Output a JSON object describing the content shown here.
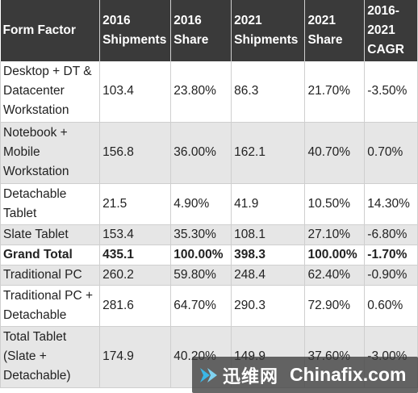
{
  "table": {
    "headers": [
      "Form Factor",
      "2016 Shipments",
      "2016 Share",
      "2021 Shipments",
      "2021 Share",
      "2016-2021 CAGR"
    ],
    "rows": [
      {
        "cells": [
          "Desktop + DT & Datacenter Workstation",
          "103.4",
          "23.80%",
          "86.3",
          "21.70%",
          "-3.50%"
        ],
        "shade": false,
        "bold": false
      },
      {
        "cells": [
          "Notebook + Mobile Workstation",
          "156.8",
          "36.00%",
          "162.1",
          "40.70%",
          "0.70%"
        ],
        "shade": true,
        "bold": false
      },
      {
        "cells": [
          "Detachable Tablet",
          "21.5",
          "4.90%",
          "41.9",
          "10.50%",
          "14.30%"
        ],
        "shade": false,
        "bold": false
      },
      {
        "cells": [
          "Slate Tablet",
          "153.4",
          "35.30%",
          "108.1",
          "27.10%",
          "-6.80%"
        ],
        "shade": true,
        "bold": false
      },
      {
        "cells": [
          "Grand Total",
          "435.1",
          "100.00%",
          "398.3",
          "100.00%",
          "-1.70%"
        ],
        "shade": false,
        "bold": true
      },
      {
        "cells": [
          "Traditional PC",
          "260.2",
          "59.80%",
          "248.4",
          "62.40%",
          "-0.90%"
        ],
        "shade": true,
        "bold": false
      },
      {
        "cells": [
          "Traditional PC + Detachable",
          "281.6",
          "64.70%",
          "290.3",
          "72.90%",
          "0.60%"
        ],
        "shade": false,
        "bold": false
      },
      {
        "cells": [
          "Total Tablet (Slate + Detachable)",
          "174.9",
          "40.20%",
          "149.9",
          "37.60%",
          "-3.00%"
        ],
        "shade": true,
        "bold": false
      }
    ]
  },
  "watermark": {
    "cn_text": "迅维网",
    "en_text": "Chinafix.com",
    "logo_icon": "chinafix-logo-icon",
    "logo_color": "#3ab7e8"
  }
}
